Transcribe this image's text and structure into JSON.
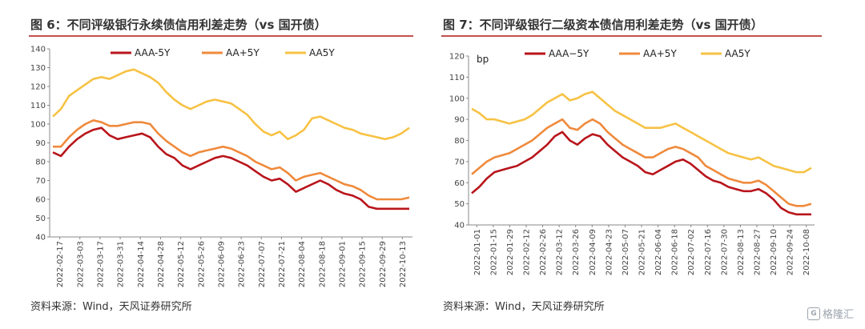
{
  "watermark": {
    "text": "格隆汇"
  },
  "chart_data": [
    {
      "type": "line",
      "title": "图 6：不同评级银行永续债信用利差走势（vs 国开债）",
      "source": "资料来源：Wind，天风证券研究所",
      "unit_label": "",
      "ylim": [
        40,
        140
      ],
      "yticks": [
        40,
        50,
        60,
        70,
        80,
        90,
        100,
        110,
        120,
        130,
        140
      ],
      "x_ticks": [
        "2022-02-17",
        "2022-03-03",
        "2022-03-17",
        "2022-03-31",
        "2022-04-14",
        "2022-04-28",
        "2022-05-12",
        "2022-05-26",
        "2022-06-09",
        "2022-06-23",
        "2022-07-07",
        "2022-07-21",
        "2022-08-04",
        "2022-08-18",
        "2022-09-01",
        "2022-09-15",
        "2022-09-29",
        "2022-10-13"
      ],
      "legend_position": "top",
      "series": [
        {
          "name": "AAA-5Y",
          "color": "#b8151b",
          "values": [
            85,
            83,
            88,
            92,
            95,
            97,
            98,
            94,
            92,
            93,
            94,
            95,
            93,
            88,
            84,
            82,
            78,
            76,
            78,
            80,
            82,
            83,
            82,
            80,
            78,
            75,
            72,
            70,
            71,
            68,
            64,
            66,
            68,
            70,
            68,
            65,
            63,
            62,
            60,
            56,
            55,
            55,
            55,
            55,
            55
          ]
        },
        {
          "name": "AA+5Y",
          "color": "#ef8a3c",
          "values": [
            88,
            88,
            93,
            97,
            100,
            102,
            101,
            99,
            99,
            100,
            101,
            101,
            100,
            95,
            91,
            88,
            85,
            83,
            85,
            86,
            87,
            88,
            87,
            85,
            83,
            80,
            78,
            76,
            77,
            74,
            70,
            72,
            73,
            74,
            72,
            70,
            68,
            67,
            65,
            62,
            60,
            60,
            60,
            60,
            61
          ]
        },
        {
          "name": "AA5Y",
          "color": "#f7c244",
          "values": [
            104,
            108,
            115,
            118,
            121,
            124,
            125,
            124,
            126,
            128,
            129,
            127,
            125,
            122,
            117,
            113,
            110,
            108,
            110,
            112,
            113,
            112,
            111,
            108,
            105,
            100,
            96,
            94,
            96,
            92,
            94,
            97,
            103,
            104,
            102,
            100,
            98,
            97,
            95,
            94,
            93,
            92,
            93,
            95,
            98
          ]
        }
      ]
    },
    {
      "type": "line",
      "title": "图 7：不同评级银行二级资本债信用利差走势（vs 国开债）",
      "source": "资料来源：Wind，天风证券研究所",
      "unit_label": "bp",
      "ylim": [
        40,
        120
      ],
      "yticks": [
        40,
        50,
        60,
        70,
        80,
        90,
        100,
        110,
        120
      ],
      "x_ticks": [
        "2022-01-01",
        "2022-01-15",
        "2022-01-29",
        "2022-02-12",
        "2022-02-26",
        "2022-03-12",
        "2022-03-26",
        "2022-04-09",
        "2022-04-23",
        "2022-05-07",
        "2022-05-21",
        "2022-06-04",
        "2022-06-18",
        "2022-07-02",
        "2022-07-16",
        "2022-07-30",
        "2022-08-13",
        "2022-08-27",
        "2022-09-10",
        "2022-09-24",
        "2022-10-08"
      ],
      "legend_position": "top",
      "series": [
        {
          "name": "AAA−5Y",
          "color": "#b8151b",
          "values": [
            55,
            58,
            62,
            65,
            66,
            67,
            68,
            70,
            72,
            75,
            78,
            82,
            84,
            80,
            78,
            81,
            83,
            82,
            78,
            75,
            72,
            70,
            68,
            65,
            64,
            66,
            68,
            70,
            71,
            69,
            66,
            63,
            61,
            60,
            58,
            57,
            56,
            56,
            57,
            55,
            52,
            48,
            46,
            45,
            45,
            45
          ]
        },
        {
          "name": "AA+5Y",
          "color": "#ef8a3c",
          "values": [
            64,
            67,
            70,
            72,
            73,
            74,
            76,
            78,
            80,
            83,
            86,
            88,
            90,
            86,
            85,
            88,
            90,
            88,
            84,
            81,
            78,
            76,
            74,
            72,
            72,
            74,
            76,
            77,
            76,
            74,
            72,
            68,
            66,
            64,
            62,
            61,
            60,
            60,
            61,
            59,
            56,
            53,
            50,
            49,
            49,
            50
          ]
        },
        {
          "name": "AA5Y",
          "color": "#f7c244",
          "values": [
            95,
            93,
            90,
            90,
            89,
            88,
            89,
            90,
            92,
            95,
            98,
            100,
            102,
            99,
            100,
            102,
            103,
            100,
            97,
            94,
            92,
            90,
            88,
            86,
            86,
            86,
            87,
            88,
            86,
            84,
            82,
            80,
            78,
            76,
            74,
            73,
            72,
            71,
            72,
            70,
            68,
            67,
            66,
            65,
            65,
            67
          ]
        }
      ]
    }
  ]
}
